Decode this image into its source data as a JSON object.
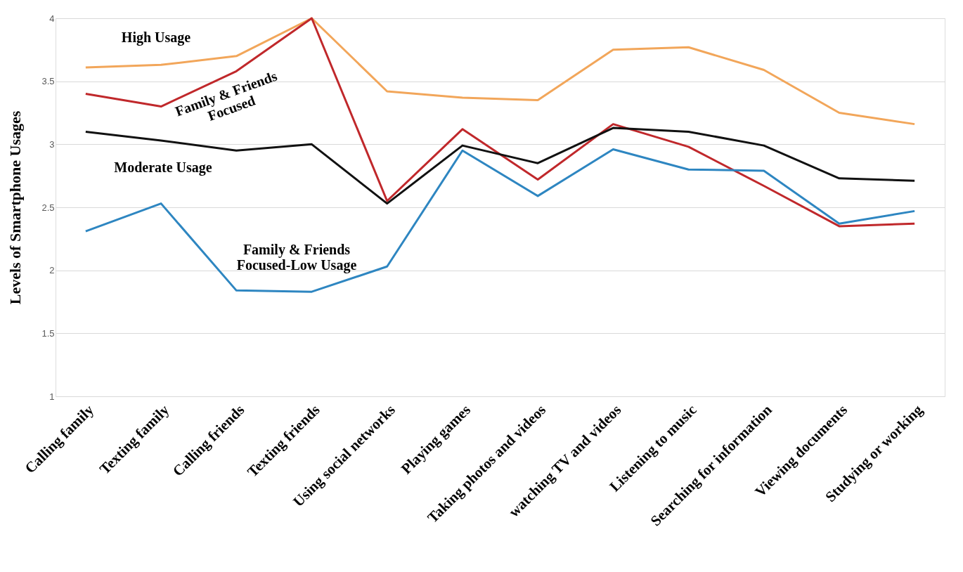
{
  "chart_data": {
    "type": "line",
    "ylabel": "Levels of Smartphone  Usages",
    "categories": [
      "Calling family",
      "Texting family",
      "Calling friends",
      "Texting friends",
      "Using social networks",
      "Playing games",
      "Taking photos and videos",
      "watching TV and videos",
      "Listening to music",
      "Searching for information",
      "Viewing documents",
      "Studying or working"
    ],
    "series": [
      {
        "name": "High Usage",
        "color": "#f2a65a",
        "values": [
          3.61,
          3.63,
          3.7,
          4.0,
          3.42,
          3.37,
          3.35,
          3.75,
          3.77,
          3.59,
          3.25,
          3.16
        ]
      },
      {
        "name": "Family & Friends\nFocused",
        "color": "#c0282b",
        "values": [
          3.4,
          3.3,
          3.58,
          4.0,
          2.55,
          3.12,
          2.72,
          3.16,
          2.98,
          2.67,
          2.35,
          2.37
        ]
      },
      {
        "name": "Moderate Usage",
        "color": "#111111",
        "values": [
          3.1,
          3.03,
          2.95,
          3.0,
          2.53,
          2.99,
          2.85,
          3.13,
          3.1,
          2.99,
          2.73,
          2.71
        ]
      },
      {
        "name": "Family & Friends\nFocused-Low Usage",
        "color": "#2e86c1",
        "values": [
          2.31,
          2.53,
          1.84,
          1.83,
          2.03,
          2.95,
          2.59,
          2.96,
          2.8,
          2.79,
          2.37,
          2.47
        ]
      }
    ],
    "ylim": [
      1,
      4
    ],
    "yticks": [
      1,
      1.5,
      2,
      2.5,
      3,
      3.5,
      4
    ],
    "grid": "y",
    "marker": "none",
    "line_style": "solid"
  }
}
